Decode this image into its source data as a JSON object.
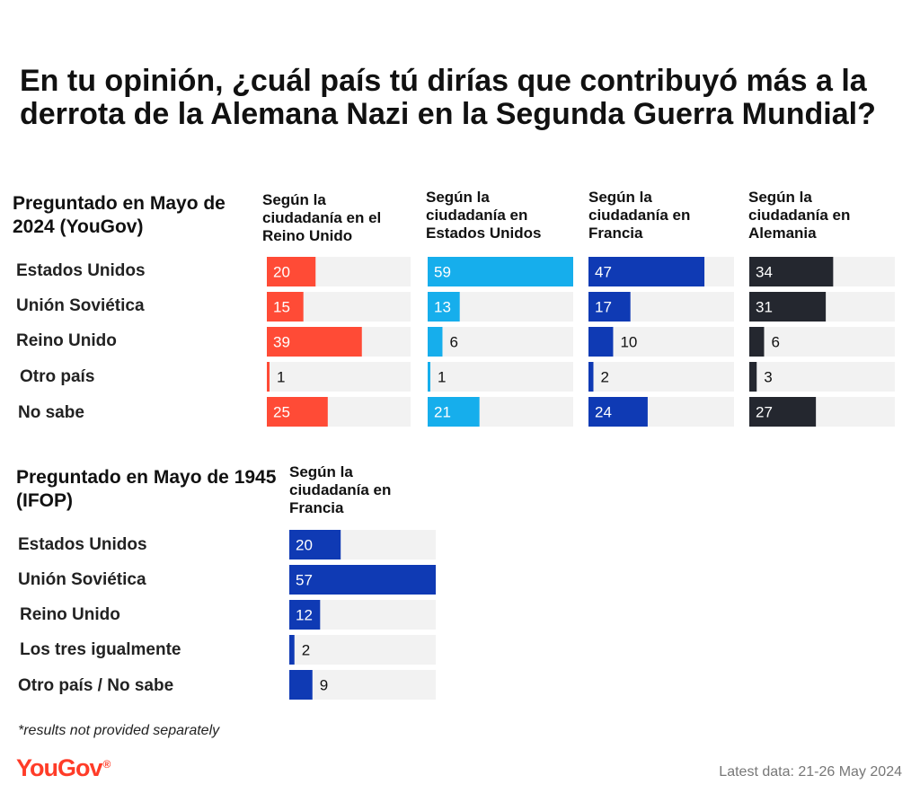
{
  "title": "En tu opinión, ¿cuál país tú dirías que contribuyó más a la derrota de la Alemana Nazi en la Segunda Guerra Mundial?",
  "footnote": "*results not provided separately",
  "brand": {
    "name": "YouGov",
    "mark": "®"
  },
  "latest": "Latest data: 21-26 May 2024",
  "colors": {
    "track": "#f2f2f2",
    "uk": "#ff4b36",
    "us": "#16aeec",
    "fr": "#0f3ab4",
    "de": "#24272f"
  },
  "chart_data": [
    {
      "type": "bar",
      "title": "Preguntado en Mayo de 2024 (YouGov)",
      "categories": [
        "Estados Unidos",
        "Unión Soviética",
        "Reino Unido",
        "Otro país",
        "No sabe"
      ],
      "xlim": [
        0,
        59
      ],
      "series": [
        {
          "name": "Según la ciudadanía en el Reino Unido",
          "values": [
            20,
            15,
            39,
            1,
            25
          ],
          "color": "#ff4b36"
        },
        {
          "name": "Según la ciudadanía en Estados Unidos",
          "values": [
            59,
            13,
            6,
            1,
            21
          ],
          "color": "#16aeec"
        },
        {
          "name": "Según la ciudadanía en Francia",
          "values": [
            47,
            17,
            10,
            2,
            24
          ],
          "color": "#0f3ab4"
        },
        {
          "name": "Según la ciudadanía en Alemania",
          "values": [
            34,
            31,
            6,
            3,
            27
          ],
          "color": "#24272f"
        }
      ]
    },
    {
      "type": "bar",
      "title": "Preguntado en Mayo de 1945 (IFOP)",
      "categories": [
        "Estados Unidos",
        "Unión Soviética",
        "Reino Unido",
        "Los tres igualmente",
        "Otro país / No sabe"
      ],
      "xlim": [
        0,
        57
      ],
      "series": [
        {
          "name": "Según la ciudadanía en Francia",
          "values": [
            20,
            57,
            12,
            2,
            9
          ],
          "color": "#0f3ab4"
        }
      ]
    }
  ]
}
